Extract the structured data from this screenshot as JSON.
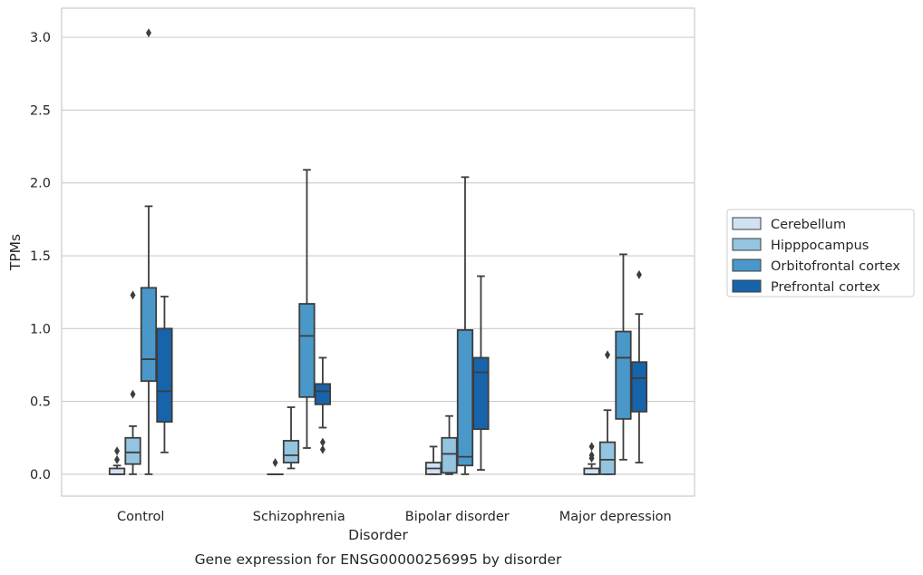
{
  "chart_data": {
    "type": "box",
    "xlabel": "Disorder",
    "ylabel": "TPMs",
    "caption": "Gene expression for ENSG00000256995 by disorder",
    "categories": [
      "Control",
      "Schizophrenia",
      "Bipolar disorder",
      "Major depression"
    ],
    "ylim": [
      -0.15,
      3.2
    ],
    "yticks": [
      0.0,
      0.5,
      1.0,
      1.5,
      2.0,
      2.5,
      3.0
    ],
    "ytick_labels": [
      "0.0",
      "0.5",
      "1.0",
      "1.5",
      "2.0",
      "2.5",
      "3.0"
    ],
    "grid": true,
    "legend_position": "right",
    "legend": [
      "Cerebellum",
      "Hipppocampus",
      "Orbitofrontal cortex",
      "Prefrontal cortex"
    ],
    "series": [
      {
        "name": "Cerebellum",
        "color": "#d0e1f2",
        "boxes": [
          {
            "q1": 0.0,
            "median": 0.0,
            "q3": 0.04,
            "whislo": 0.0,
            "whishi": 0.06,
            "fliers": [
              0.1,
              0.16
            ]
          },
          {
            "q1": 0.0,
            "median": 0.0,
            "q3": 0.0,
            "whislo": 0.0,
            "whishi": 0.0,
            "fliers": [
              0.08
            ]
          },
          {
            "q1": 0.0,
            "median": 0.04,
            "q3": 0.08,
            "whislo": 0.0,
            "whishi": 0.19,
            "fliers": []
          },
          {
            "q1": 0.0,
            "median": 0.0,
            "q3": 0.04,
            "whislo": 0.0,
            "whishi": 0.07,
            "fliers": [
              0.11,
              0.13,
              0.19
            ]
          }
        ]
      },
      {
        "name": "Hipppocampus",
        "color": "#94c4df",
        "boxes": [
          {
            "q1": 0.07,
            "median": 0.15,
            "q3": 0.25,
            "whislo": 0.0,
            "whishi": 0.33,
            "fliers": [
              0.55,
              1.23
            ]
          },
          {
            "q1": 0.08,
            "median": 0.13,
            "q3": 0.23,
            "whislo": 0.04,
            "whishi": 0.46,
            "fliers": []
          },
          {
            "q1": 0.01,
            "median": 0.14,
            "q3": 0.25,
            "whislo": 0.0,
            "whishi": 0.4,
            "fliers": []
          },
          {
            "q1": 0.0,
            "median": 0.1,
            "q3": 0.22,
            "whislo": 0.0,
            "whishi": 0.44,
            "fliers": [
              0.82
            ]
          }
        ]
      },
      {
        "name": "Orbitofrontal cortex",
        "color": "#4a98c9",
        "boxes": [
          {
            "q1": 0.64,
            "median": 0.79,
            "q3": 1.28,
            "whislo": 0.0,
            "whishi": 1.84,
            "fliers": [
              3.03
            ]
          },
          {
            "q1": 0.53,
            "median": 0.95,
            "q3": 1.17,
            "whislo": 0.18,
            "whishi": 2.09,
            "fliers": []
          },
          {
            "q1": 0.06,
            "median": 0.12,
            "q3": 0.99,
            "whislo": 0.0,
            "whishi": 2.04,
            "fliers": []
          },
          {
            "q1": 0.38,
            "median": 0.8,
            "q3": 0.98,
            "whislo": 0.1,
            "whishi": 1.51,
            "fliers": []
          }
        ]
      },
      {
        "name": "Prefrontal cortex",
        "color": "#1764ab",
        "boxes": [
          {
            "q1": 0.36,
            "median": 0.57,
            "q3": 1.0,
            "whislo": 0.15,
            "whishi": 1.22,
            "fliers": []
          },
          {
            "q1": 0.48,
            "median": 0.57,
            "q3": 0.62,
            "whislo": 0.32,
            "whishi": 0.8,
            "fliers": [
              0.17,
              0.22
            ]
          },
          {
            "q1": 0.31,
            "median": 0.7,
            "q3": 0.8,
            "whislo": 0.03,
            "whishi": 1.36,
            "fliers": []
          },
          {
            "q1": 0.43,
            "median": 0.66,
            "q3": 0.77,
            "whislo": 0.08,
            "whishi": 1.1,
            "fliers": [
              1.37
            ]
          }
        ]
      }
    ]
  }
}
